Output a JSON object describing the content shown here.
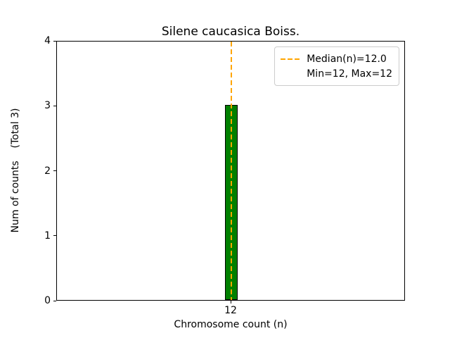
{
  "title": "Silene caucasica Boiss.",
  "chart_data": {
    "type": "bar",
    "title": "Silene caucasica Boiss.",
    "xlabel": "Chromosome count (n)",
    "ylabel": "Num of counts    (Total 3)",
    "categories": [
      "12"
    ],
    "values": [
      3
    ],
    "ylim": [
      0,
      4
    ],
    "yticks": [
      0,
      1,
      2,
      3,
      4
    ],
    "median": 12.0,
    "min": 12,
    "max": 12,
    "total": 3,
    "grid": false,
    "bar_color": "#008000",
    "bar_edge_color": "#000000",
    "median_line_color": "#FFA500",
    "legend": {
      "position": "upper right",
      "items": [
        {
          "label": "Median(n)=12.0",
          "style": "dashed-line",
          "color": "#FFA500"
        },
        {
          "label": "Min=12, Max=12",
          "style": "none"
        }
      ]
    }
  }
}
